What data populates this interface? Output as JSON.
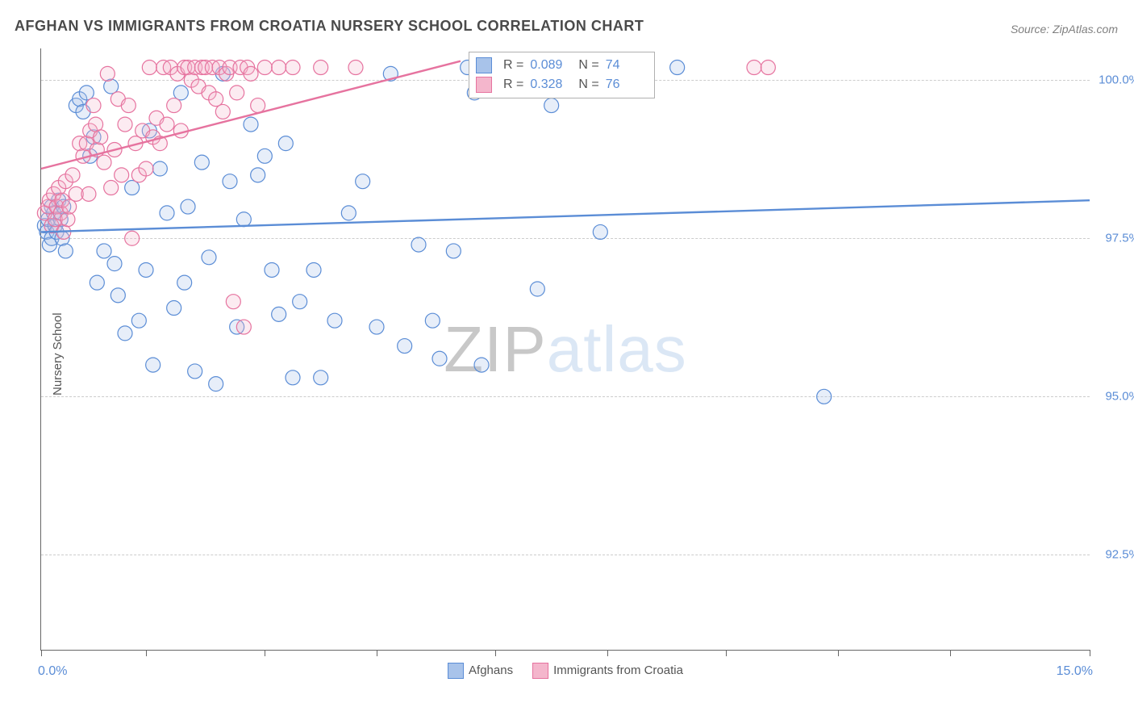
{
  "title": "AFGHAN VS IMMIGRANTS FROM CROATIA NURSERY SCHOOL CORRELATION CHART",
  "source": "Source: ZipAtlas.com",
  "y_axis_label": "Nursery School",
  "watermark": {
    "part1": "ZIP",
    "part2": "atlas"
  },
  "chart": {
    "type": "scatter-with-trend",
    "xlim": [
      0,
      15
    ],
    "ylim": [
      91,
      100.5
    ],
    "x_ticks_at": [
      0,
      1.5,
      3.2,
      4.8,
      6.5,
      8.1,
      9.8,
      11.4,
      13.0,
      15.0
    ],
    "x_range_label_min": "0.0%",
    "x_range_label_max": "15.0%",
    "y_ticks": [
      {
        "value": 92.5,
        "label": "92.5%"
      },
      {
        "value": 95.0,
        "label": "95.0%"
      },
      {
        "value": 97.5,
        "label": "97.5%"
      },
      {
        "value": 100.0,
        "label": "100.0%"
      }
    ],
    "grid_color": "#cccccc",
    "background_color": "#ffffff",
    "marker_radius": 9,
    "marker_stroke_width": 1.2,
    "marker_fill_opacity": 0.28,
    "trend_line_width": 2.4,
    "series": [
      {
        "name": "Afghans",
        "color": "#5b8dd6",
        "fill": "#a8c3ea",
        "R": "0.089",
        "N": "74",
        "trend": {
          "x1": 0,
          "y1": 97.6,
          "x2": 15,
          "y2": 98.1
        },
        "points": [
          [
            0.05,
            97.7
          ],
          [
            0.08,
            97.6
          ],
          [
            0.1,
            97.8
          ],
          [
            0.12,
            97.4
          ],
          [
            0.15,
            98.0
          ],
          [
            0.15,
            97.5
          ],
          [
            0.18,
            97.9
          ],
          [
            0.2,
            97.7
          ],
          [
            0.22,
            97.6
          ],
          [
            0.25,
            98.1
          ],
          [
            0.28,
            97.8
          ],
          [
            0.3,
            97.5
          ],
          [
            0.32,
            98.0
          ],
          [
            0.35,
            97.3
          ],
          [
            0.5,
            99.6
          ],
          [
            0.55,
            99.7
          ],
          [
            0.6,
            99.5
          ],
          [
            0.65,
            99.8
          ],
          [
            0.7,
            98.8
          ],
          [
            0.75,
            99.1
          ],
          [
            0.8,
            96.8
          ],
          [
            0.9,
            97.3
          ],
          [
            1.0,
            99.9
          ],
          [
            1.05,
            97.1
          ],
          [
            1.1,
            96.6
          ],
          [
            1.2,
            96.0
          ],
          [
            1.3,
            98.3
          ],
          [
            1.4,
            96.2
          ],
          [
            1.5,
            97.0
          ],
          [
            1.55,
            99.2
          ],
          [
            1.6,
            95.5
          ],
          [
            1.7,
            98.6
          ],
          [
            1.8,
            97.9
          ],
          [
            1.9,
            96.4
          ],
          [
            2.0,
            99.8
          ],
          [
            2.05,
            96.8
          ],
          [
            2.1,
            98.0
          ],
          [
            2.2,
            95.4
          ],
          [
            2.3,
            98.7
          ],
          [
            2.4,
            97.2
          ],
          [
            2.5,
            95.2
          ],
          [
            2.6,
            100.1
          ],
          [
            2.7,
            98.4
          ],
          [
            2.8,
            96.1
          ],
          [
            2.9,
            97.8
          ],
          [
            3.0,
            99.3
          ],
          [
            3.1,
            98.5
          ],
          [
            3.2,
            98.8
          ],
          [
            3.3,
            97.0
          ],
          [
            3.4,
            96.3
          ],
          [
            3.5,
            99.0
          ],
          [
            3.6,
            95.3
          ],
          [
            3.7,
            96.5
          ],
          [
            3.9,
            97.0
          ],
          [
            4.0,
            95.3
          ],
          [
            4.2,
            96.2
          ],
          [
            4.4,
            97.9
          ],
          [
            4.6,
            98.4
          ],
          [
            4.8,
            96.1
          ],
          [
            5.0,
            100.1
          ],
          [
            5.2,
            95.8
          ],
          [
            5.4,
            97.4
          ],
          [
            5.6,
            96.2
          ],
          [
            5.7,
            95.6
          ],
          [
            5.9,
            97.3
          ],
          [
            6.1,
            100.2
          ],
          [
            6.2,
            99.8
          ],
          [
            6.3,
            95.5
          ],
          [
            6.8,
            100.2
          ],
          [
            7.1,
            96.7
          ],
          [
            7.3,
            99.6
          ],
          [
            8.0,
            97.6
          ],
          [
            9.1,
            100.2
          ],
          [
            11.2,
            95.0
          ]
        ]
      },
      {
        "name": "Immigrants from Croatia",
        "color": "#e6739f",
        "fill": "#f4b6cc",
        "R": "0.328",
        "N": "76",
        "trend": {
          "x1": 0,
          "y1": 98.6,
          "x2": 6.0,
          "y2": 100.3
        },
        "points": [
          [
            0.05,
            97.9
          ],
          [
            0.1,
            98.0
          ],
          [
            0.12,
            98.1
          ],
          [
            0.15,
            97.7
          ],
          [
            0.18,
            98.2
          ],
          [
            0.2,
            97.8
          ],
          [
            0.22,
            98.0
          ],
          [
            0.25,
            98.3
          ],
          [
            0.28,
            97.9
          ],
          [
            0.3,
            98.1
          ],
          [
            0.32,
            97.6
          ],
          [
            0.35,
            98.4
          ],
          [
            0.38,
            97.8
          ],
          [
            0.4,
            98.0
          ],
          [
            0.45,
            98.5
          ],
          [
            0.5,
            98.2
          ],
          [
            0.55,
            99.0
          ],
          [
            0.6,
            98.8
          ],
          [
            0.65,
            99.0
          ],
          [
            0.68,
            98.2
          ],
          [
            0.7,
            99.2
          ],
          [
            0.75,
            99.6
          ],
          [
            0.78,
            99.3
          ],
          [
            0.8,
            98.9
          ],
          [
            0.85,
            99.1
          ],
          [
            0.9,
            98.7
          ],
          [
            0.95,
            100.1
          ],
          [
            1.0,
            98.3
          ],
          [
            1.05,
            98.9
          ],
          [
            1.1,
            99.7
          ],
          [
            1.15,
            98.5
          ],
          [
            1.2,
            99.3
          ],
          [
            1.25,
            99.6
          ],
          [
            1.3,
            97.5
          ],
          [
            1.35,
            99.0
          ],
          [
            1.4,
            98.5
          ],
          [
            1.45,
            99.2
          ],
          [
            1.5,
            98.6
          ],
          [
            1.55,
            100.2
          ],
          [
            1.6,
            99.1
          ],
          [
            1.65,
            99.4
          ],
          [
            1.7,
            99.0
          ],
          [
            1.75,
            100.2
          ],
          [
            1.8,
            99.3
          ],
          [
            1.85,
            100.2
          ],
          [
            1.9,
            99.6
          ],
          [
            1.95,
            100.1
          ],
          [
            2.0,
            99.2
          ],
          [
            2.05,
            100.2
          ],
          [
            2.1,
            100.2
          ],
          [
            2.15,
            100.0
          ],
          [
            2.2,
            100.2
          ],
          [
            2.25,
            99.9
          ],
          [
            2.3,
            100.2
          ],
          [
            2.35,
            100.2
          ],
          [
            2.4,
            99.8
          ],
          [
            2.45,
            100.2
          ],
          [
            2.5,
            99.7
          ],
          [
            2.55,
            100.2
          ],
          [
            2.6,
            99.5
          ],
          [
            2.65,
            100.1
          ],
          [
            2.7,
            100.2
          ],
          [
            2.75,
            96.5
          ],
          [
            2.8,
            99.8
          ],
          [
            2.85,
            100.2
          ],
          [
            2.9,
            96.1
          ],
          [
            2.95,
            100.2
          ],
          [
            3.0,
            100.1
          ],
          [
            3.1,
            99.6
          ],
          [
            3.2,
            100.2
          ],
          [
            3.4,
            100.2
          ],
          [
            3.6,
            100.2
          ],
          [
            4.0,
            100.2
          ],
          [
            4.5,
            100.2
          ],
          [
            10.2,
            100.2
          ],
          [
            10.4,
            100.2
          ]
        ]
      }
    ],
    "footer_legend": [
      {
        "label": "Afghans",
        "fill": "#a8c3ea",
        "stroke": "#5b8dd6"
      },
      {
        "label": "Immigrants from Croatia",
        "fill": "#f4b6cc",
        "stroke": "#e6739f"
      }
    ]
  }
}
